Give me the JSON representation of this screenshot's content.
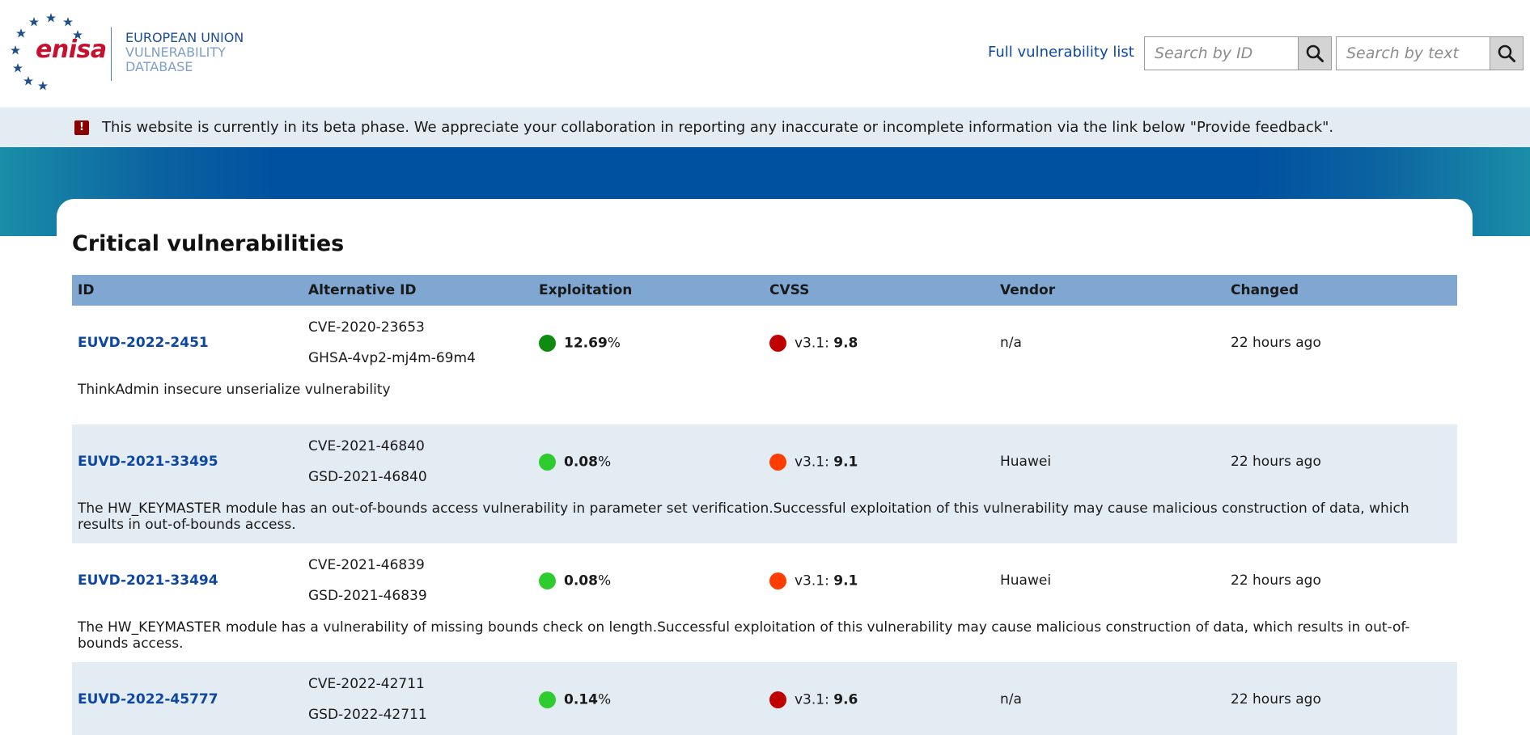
{
  "header": {
    "logo_text": "enisa",
    "logo_sub": [
      "EUROPEAN UNION",
      "VULNERABILITY",
      "DATABASE"
    ],
    "nav_link": "Full vulnerability list",
    "search_id_placeholder": "Search by ID",
    "search_text_placeholder": "Search by text"
  },
  "banner": {
    "icon": "!",
    "text": "This website is currently in its beta phase. We appreciate your collaboration in reporting any inaccurate or incomplete information via the link below \"Provide feedback\"."
  },
  "main": {
    "title": "Critical vulnerabilities",
    "columns": [
      "ID",
      "Alternative ID",
      "Exploitation",
      "CVSS",
      "Vendor",
      "Changed"
    ],
    "rows": [
      {
        "id": "EUVD-2022-2451",
        "alt_ids": [
          "CVE-2020-23653",
          "GHSA-4vp2-mj4m-69m4"
        ],
        "exploitation": "12.69",
        "exploitation_unit": "%",
        "exploitation_color": "#118a11",
        "cvss_prefix": "v3.1: ",
        "cvss": "9.8",
        "cvss_color": "#c00000",
        "vendor": "n/a",
        "changed": "22 hours ago",
        "description": "ThinkAdmin insecure unserialize vulnerability"
      },
      {
        "id": "EUVD-2021-33495",
        "alt_ids": [
          "CVE-2021-46840",
          "GSD-2021-46840"
        ],
        "exploitation": "0.08",
        "exploitation_unit": "%",
        "exploitation_color": "#2ecc2e",
        "cvss_prefix": "v3.1: ",
        "cvss": "9.1",
        "cvss_color": "#ff3d00",
        "vendor": "Huawei",
        "changed": "22 hours ago",
        "description": "The HW_KEYMASTER module has an out-of-bounds access vulnerability in parameter set verification.Successful exploitation of this vulnerability may cause malicious construction of data, which results in out-of-bounds access."
      },
      {
        "id": "EUVD-2021-33494",
        "alt_ids": [
          "CVE-2021-46839",
          "GSD-2021-46839"
        ],
        "exploitation": "0.08",
        "exploitation_unit": "%",
        "exploitation_color": "#2ecc2e",
        "cvss_prefix": "v3.1: ",
        "cvss": "9.1",
        "cvss_color": "#ff3d00",
        "vendor": "Huawei",
        "changed": "22 hours ago",
        "description": "The HW_KEYMASTER module has a vulnerability of missing bounds check on length.Successful exploitation of this vulnerability may cause malicious construction of data, which results in out-of-bounds access."
      },
      {
        "id": "EUVD-2022-45777",
        "alt_ids": [
          "CVE-2022-42711",
          "GSD-2022-42711"
        ],
        "exploitation": "0.14",
        "exploitation_unit": "%",
        "exploitation_color": "#2ecc2e",
        "cvss_prefix": "v3.1: ",
        "cvss": "9.6",
        "cvss_color": "#c00000",
        "vendor": "n/a",
        "changed": "22 hours ago",
        "description": ""
      }
    ]
  }
}
